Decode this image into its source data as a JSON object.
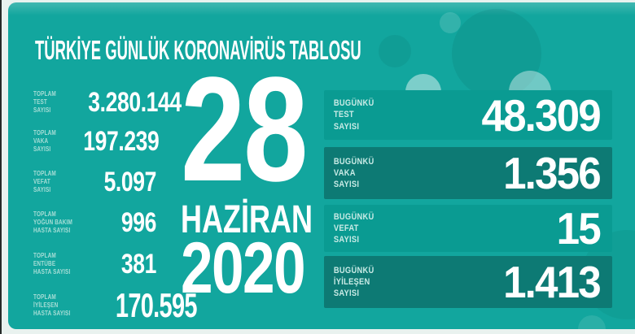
{
  "title": "TÜRKİYE GÜNLÜK KORONAVİRÜS TABLOSU",
  "date": {
    "day": "28",
    "month": "HAZİRAN",
    "year": "2020"
  },
  "totals": [
    {
      "line1": "TOPLAM",
      "line2": "TEST",
      "line3": "SAYISI",
      "value": "3.280.144"
    },
    {
      "line1": "TOPLAM",
      "line2": "VAKA",
      "line3": "SAYISI",
      "value": "197.239"
    },
    {
      "line1": "TOPLAM",
      "line2": "VEFAT",
      "line3": "SAYISI",
      "value": "5.097"
    },
    {
      "line1": "TOPLAM",
      "line2": "YOĞUN BAKIM",
      "line3": "HASTA SAYISI",
      "value": "996"
    },
    {
      "line1": "TOPLAM",
      "line2": "ENTÜBE",
      "line3": "HASTA SAYISI",
      "value": "381"
    },
    {
      "line1": "TOPLAM",
      "line2": "İYİLEŞEN",
      "line3": "HASTA SAYISI",
      "value": "170.595"
    }
  ],
  "daily": [
    {
      "line1": "BUGÜNKÜ",
      "line2": "TEST",
      "line3": "SAYISI",
      "value": "48.309"
    },
    {
      "line1": "BUGÜNKÜ",
      "line2": "VAKA",
      "line3": "SAYISI",
      "value": "1.356"
    },
    {
      "line1": "BUGÜNKÜ",
      "line2": "VEFAT",
      "line3": "SAYISI",
      "value": "15"
    },
    {
      "line1": "BUGÜNKÜ",
      "line2": "İYİLEŞEN",
      "line3": "SAYISI",
      "value": "1.413"
    }
  ],
  "colors": {
    "teal": "#12a69e",
    "row_light": "#0a9b92",
    "row_dark": "#0d7a74",
    "label_mint": "#c9ebe6",
    "label_mint_dim": "#a8ded7",
    "margin_white": "#e9f2ef",
    "text_white": "#ffffff"
  },
  "chart_data": {
    "type": "table",
    "title": "TÜRKİYE GÜNLÜK KORONAVİRÜS TABLOSU",
    "date": "28 HAZİRAN 2020",
    "totals": [
      {
        "label": "TOPLAM TEST SAYISI",
        "value": 3280144,
        "display": "3.280.144"
      },
      {
        "label": "TOPLAM VAKA SAYISI",
        "value": 197239,
        "display": "197.239"
      },
      {
        "label": "TOPLAM VEFAT SAYISI",
        "value": 5097,
        "display": "5.097"
      },
      {
        "label": "TOPLAM YOĞUN BAKIM HASTA SAYISI",
        "value": 996,
        "display": "996"
      },
      {
        "label": "TOPLAM ENTÜBE HASTA SAYISI",
        "value": 381,
        "display": "381"
      },
      {
        "label": "TOPLAM İYİLEŞEN HASTA SAYISI",
        "value": 170595,
        "display": "170.595"
      }
    ],
    "daily": [
      {
        "label": "BUGÜNKÜ TEST SAYISI",
        "value": 48309,
        "display": "48.309"
      },
      {
        "label": "BUGÜNKÜ VAKA SAYISI",
        "value": 1356,
        "display": "1.356"
      },
      {
        "label": "BUGÜNKÜ VEFAT SAYISI",
        "value": 15,
        "display": "15"
      },
      {
        "label": "BUGÜNKÜ İYİLEŞEN SAYISI",
        "value": 1413,
        "display": "1.413"
      }
    ]
  }
}
